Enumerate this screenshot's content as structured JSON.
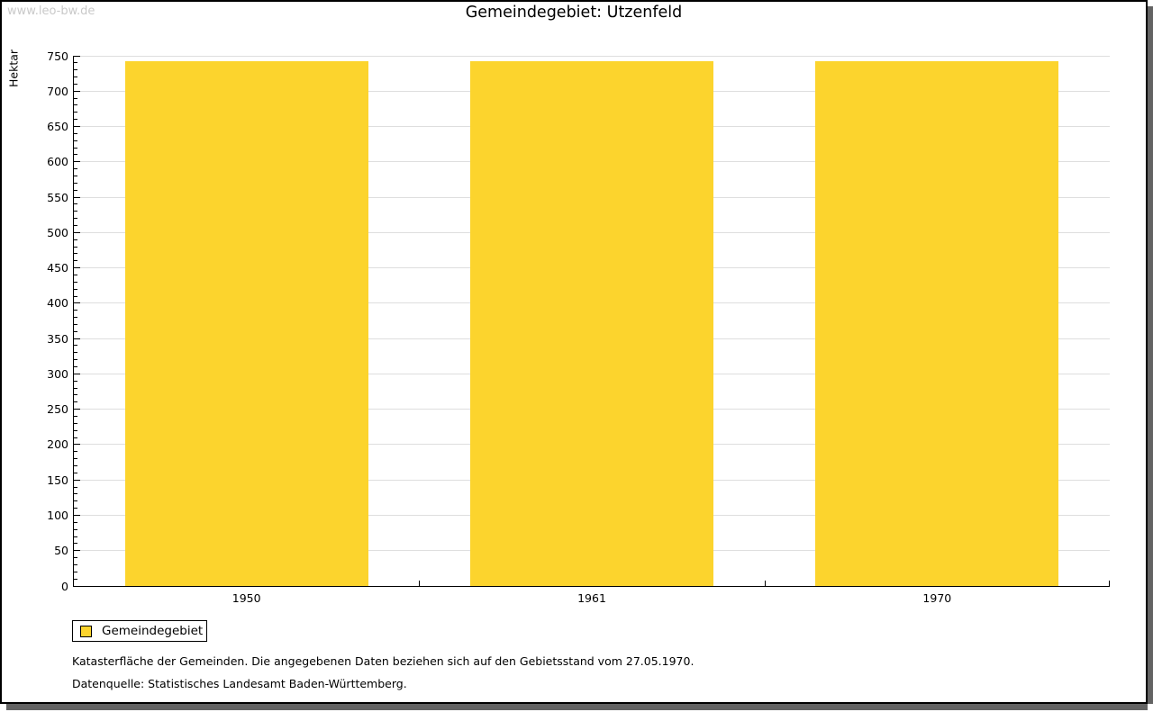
{
  "watermark": "www.leo-bw.de",
  "title": "Gemeindegebiet: Utzenfeld",
  "legend": {
    "label": "Gemeindegebiet",
    "swatch_color": "#fcd42d"
  },
  "footer": {
    "line1": "Katasterfläche der Gemeinden. Die angegebenen Daten beziehen sich auf den Gebietsstand vom 27.05.1970.",
    "line2": "Datenquelle: Statistisches Landesamt Baden-Württemberg."
  },
  "chart_data": {
    "type": "bar",
    "title": "Gemeindegebiet: Utzenfeld",
    "categories": [
      "1950",
      "1961",
      "1970"
    ],
    "series": [
      {
        "name": "Gemeindegebiet",
        "values": [
          742,
          742,
          742
        ]
      }
    ],
    "xlabel": "",
    "ylabel": "Hektar",
    "ylim": [
      0,
      750
    ],
    "y_major_step": 50,
    "y_minor_step": 10,
    "grid": true,
    "bar_color": "#fcd42d",
    "gridline_color": "#dedede",
    "legend_position": "bottom-left"
  }
}
